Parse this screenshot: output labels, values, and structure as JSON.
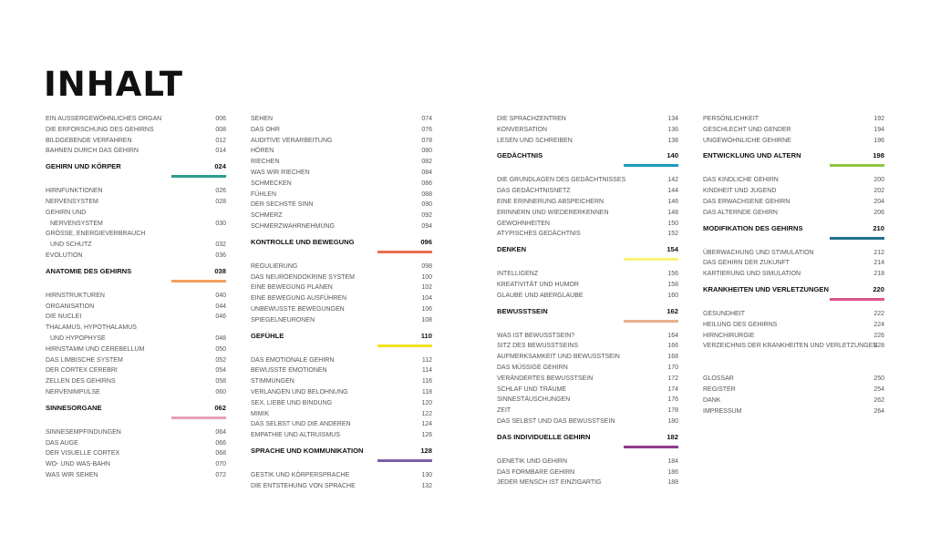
{
  "title": "INHALT",
  "columns": [
    [
      {
        "t": "item",
        "label": "EIN AUSSERGEWÖHNLICHES ORGAN",
        "page": "006"
      },
      {
        "t": "item",
        "label": "DIE ERFORSCHUNG DES GEHIRNS",
        "page": "008"
      },
      {
        "t": "item",
        "label": "BILDGEBENDE VERFAHREN",
        "page": "012"
      },
      {
        "t": "item",
        "label": "BAHNEN DURCH DAS GEHIRN",
        "page": "014"
      },
      {
        "t": "section",
        "label": "GEHIRN UND KÖRPER",
        "page": "024",
        "color": "#2a9d8f"
      },
      {
        "t": "item",
        "label": "HIRNFUNKTIONEN",
        "page": "026"
      },
      {
        "t": "item",
        "label": "NERVENSYSTEM",
        "page": "028"
      },
      {
        "t": "item",
        "label": "GEHIRN UND",
        "page": ""
      },
      {
        "t": "item",
        "label": "NERVENSYSTEM",
        "page": "030",
        "indent": true
      },
      {
        "t": "item",
        "label": "GRÖSSE, ENERGIEVERBRAUCH",
        "page": ""
      },
      {
        "t": "item",
        "label": "UND SCHUTZ",
        "page": "032",
        "indent": true
      },
      {
        "t": "item",
        "label": "EVOLUTION",
        "page": "036"
      },
      {
        "t": "section",
        "label": "ANATOMIE DES GEHIRNS",
        "page": "038",
        "color": "#f4a261"
      },
      {
        "t": "item",
        "label": "HIRNSTRUKTUREN",
        "page": "040"
      },
      {
        "t": "item",
        "label": "ORGANISATION",
        "page": "044"
      },
      {
        "t": "item",
        "label": "DIE NUCLEI",
        "page": "046"
      },
      {
        "t": "item",
        "label": "THALAMUS, HYPOTHALAMUS",
        "page": ""
      },
      {
        "t": "item",
        "label": "UND HYPOPHYSE",
        "page": "048",
        "indent": true
      },
      {
        "t": "item",
        "label": "HIRNSTAMM UND CEREBELLUM",
        "page": "050"
      },
      {
        "t": "item",
        "label": "DAS LIMBISCHE SYSTEM",
        "page": "052"
      },
      {
        "t": "item",
        "label": "DER CORTEX CEREBRI",
        "page": "054"
      },
      {
        "t": "item",
        "label": "ZELLEN DES GEHIRNS",
        "page": "058"
      },
      {
        "t": "item",
        "label": "NERVENIMPULSE",
        "page": "060"
      },
      {
        "t": "section",
        "label": "SINNESORGANE",
        "page": "062",
        "color": "#e8a0b4"
      },
      {
        "t": "item",
        "label": "SINNESEMPFINDUNGEN",
        "page": "064"
      },
      {
        "t": "item",
        "label": "DAS AUGE",
        "page": "066"
      },
      {
        "t": "item",
        "label": "DER VISUELLE CORTEX",
        "page": "068"
      },
      {
        "t": "item",
        "label": "WO- UND WAS-BAHN",
        "page": "070"
      },
      {
        "t": "item",
        "label": "WAS WIR SEHEN",
        "page": "072"
      }
    ],
    [
      {
        "t": "item",
        "label": "SEHEN",
        "page": "074"
      },
      {
        "t": "item",
        "label": "DAS OHR",
        "page": "076"
      },
      {
        "t": "item",
        "label": "AUDITIVE VERARBEITUNG",
        "page": "078"
      },
      {
        "t": "item",
        "label": "HÖREN",
        "page": "080"
      },
      {
        "t": "item",
        "label": "RIECHEN",
        "page": "082"
      },
      {
        "t": "item",
        "label": "WAS WIR RIECHEN",
        "page": "084"
      },
      {
        "t": "item",
        "label": "SCHMECKEN",
        "page": "086"
      },
      {
        "t": "item",
        "label": "FÜHLEN",
        "page": "088"
      },
      {
        "t": "item",
        "label": "DER SECHSTE SINN",
        "page": "090"
      },
      {
        "t": "item",
        "label": "SCHMERZ",
        "page": "092"
      },
      {
        "t": "item",
        "label": "SCHMERZWAHRNEHMUNG",
        "page": "094"
      },
      {
        "t": "section",
        "label": "KONTROLLE UND BEWEGUNG",
        "page": "096",
        "color": "#e76f51"
      },
      {
        "t": "item",
        "label": "REGULIERUNG",
        "page": "098"
      },
      {
        "t": "item",
        "label": "DAS NEUROENDOKRINE SYSTEM",
        "page": "100"
      },
      {
        "t": "item",
        "label": "EINE BEWEGUNG PLANEN",
        "page": "102"
      },
      {
        "t": "item",
        "label": "EINE BEWEGUNG AUSFÜHREN",
        "page": "104"
      },
      {
        "t": "item",
        "label": "UNBEWUSSTE BEWEGUNGEN",
        "page": "106"
      },
      {
        "t": "item",
        "label": "SPIEGELNEURONEN",
        "page": "108"
      },
      {
        "t": "section",
        "label": "GEFÜHLE",
        "page": "110",
        "color": "#f2e21b"
      },
      {
        "t": "item",
        "label": "DAS EMOTIONALE GEHIRN",
        "page": "112"
      },
      {
        "t": "item",
        "label": "BEWUSSTE EMOTIONEN",
        "page": "114"
      },
      {
        "t": "item",
        "label": "STIMMUNGEN",
        "page": "116"
      },
      {
        "t": "item",
        "label": "VERLANGEN UND BELOHNUNG",
        "page": "118"
      },
      {
        "t": "item",
        "label": "SEX, LIEBE UND BINDUNG",
        "page": "120"
      },
      {
        "t": "item",
        "label": "MIMIK",
        "page": "122"
      },
      {
        "t": "item",
        "label": "DAS SELBST UND DIE ANDEREN",
        "page": "124"
      },
      {
        "t": "item",
        "label": "EMPATHIE UND ALTRUISMUS",
        "page": "126"
      },
      {
        "t": "section",
        "label": "SPRACHE UND KOMMUNIKATION",
        "page": "128",
        "color": "#7b5ea7"
      },
      {
        "t": "item",
        "label": "GESTIK UND KÖRPERSPRACHE",
        "page": "130"
      },
      {
        "t": "item",
        "label": "DIE ENTSTEHUNG VON SPRACHE",
        "page": "132"
      }
    ],
    [
      {
        "t": "item",
        "label": "DIE SPRACHZENTREN",
        "page": "134"
      },
      {
        "t": "item",
        "label": "KONVERSATION",
        "page": "136"
      },
      {
        "t": "item",
        "label": "LESEN UND SCHREIBEN",
        "page": "138"
      },
      {
        "t": "section",
        "label": "GEDÄCHTNIS",
        "page": "140",
        "color": "#1d9bbf"
      },
      {
        "t": "item",
        "label": "DIE GRUNDLAGEN DES GEDÄCHTNISSES",
        "page": "142"
      },
      {
        "t": "item",
        "label": "DAS GEDÄCHTNISNETZ",
        "page": "144"
      },
      {
        "t": "item",
        "label": "EINE ERINNERUNG ABSPEICHERN",
        "page": "146"
      },
      {
        "t": "item",
        "label": "ERINNERN UND WIEDERERKENNEN",
        "page": "148"
      },
      {
        "t": "item",
        "label": "GEWOHNHEITEN",
        "page": "150"
      },
      {
        "t": "item",
        "label": "ATYPISCHES GEDÄCHTNIS",
        "page": "152"
      },
      {
        "t": "section",
        "label": "DENKEN",
        "page": "154",
        "color": "#f6f27a"
      },
      {
        "t": "item",
        "label": "INTELLIGENZ",
        "page": "156"
      },
      {
        "t": "item",
        "label": "KREATIVITÄT UND HUMOR",
        "page": "158"
      },
      {
        "t": "item",
        "label": "GLAUBE UND ABERGLAUBE",
        "page": "160"
      },
      {
        "t": "section",
        "label": "BEWUSSTSEIN",
        "page": "162",
        "color": "#e8b08c"
      },
      {
        "t": "item",
        "label": "WAS IST BEWUSSTSEIN?",
        "page": "164"
      },
      {
        "t": "item",
        "label": "SITZ DES BEWUSSTSEINS",
        "page": "166"
      },
      {
        "t": "item",
        "label": "AUFMERKSAMKEIT UND BEWUSSTSEIN",
        "page": "168"
      },
      {
        "t": "item",
        "label": "DAS MÜSSIGE GEHIRN",
        "page": "170"
      },
      {
        "t": "item",
        "label": "VERÄNDERTES BEWUSSTSEIN",
        "page": "172"
      },
      {
        "t": "item",
        "label": "SCHLAF UND TRÄUME",
        "page": "174"
      },
      {
        "t": "item",
        "label": "SINNESTÄUSCHUNGEN",
        "page": "176"
      },
      {
        "t": "item",
        "label": "ZEIT",
        "page": "178"
      },
      {
        "t": "item",
        "label": "DAS SELBST UND DAS BEWUSSTSEIN",
        "page": "180"
      },
      {
        "t": "section",
        "label": "DAS INDIVIDUELLE GEHIRN",
        "page": "182",
        "color": "#8e3b8a"
      },
      {
        "t": "item",
        "label": "GENETIK UND GEHIRN",
        "page": "184"
      },
      {
        "t": "item",
        "label": "DAS FORMBARE GEHIRN",
        "page": "186"
      },
      {
        "t": "item",
        "label": "JEDER MENSCH IST EINZIGARTIG",
        "page": "188"
      }
    ],
    [
      {
        "t": "item",
        "label": "PERSÖNLICHKEIT",
        "page": "192"
      },
      {
        "t": "item",
        "label": "GESCHLECHT UND GENDER",
        "page": "194"
      },
      {
        "t": "item",
        "label": "UNGEWÖHNLICHE GEHIRNE",
        "page": "196"
      },
      {
        "t": "section",
        "label": "ENTWICKLUNG UND ALTERN",
        "page": "198",
        "color": "#8cc63f"
      },
      {
        "t": "item",
        "label": "DAS KINDLICHE GEHIRN",
        "page": "200"
      },
      {
        "t": "item",
        "label": "KINDHEIT UND JUGEND",
        "page": "202"
      },
      {
        "t": "item",
        "label": "DAS ERWACHSENE GEHIRN",
        "page": "204"
      },
      {
        "t": "item",
        "label": "DAS ALTERNDE GEHIRN",
        "page": "206"
      },
      {
        "t": "section",
        "label": "MODIFIKATION DES GEHIRNS",
        "page": "210",
        "color": "#1f6f8b"
      },
      {
        "t": "item",
        "label": "ÜBERWACHUNG UND STIMULATION",
        "page": "212"
      },
      {
        "t": "item",
        "label": "DAS GEHIRN DER ZUKUNFT",
        "page": "214"
      },
      {
        "t": "item",
        "label": "KARTIERUNG UND SIMULATION",
        "page": "218"
      },
      {
        "t": "section",
        "label": "KRANKHEITEN UND VERLETZUNGEN",
        "page": "220",
        "color": "#d9558a"
      },
      {
        "t": "item",
        "label": "GESUNDHEIT",
        "page": "222"
      },
      {
        "t": "item",
        "label": "HEILUNG DES GEHIRNS",
        "page": "224"
      },
      {
        "t": "item",
        "label": "HIRNCHIRURGIE",
        "page": "226"
      },
      {
        "t": "item",
        "label": "VERZEICHNIS DER KRANKHEITEN UND VERLETZUNGEN",
        "page": "228"
      },
      {
        "t": "gap"
      },
      {
        "t": "gap"
      },
      {
        "t": "item",
        "label": "GLOSSAR",
        "page": "250"
      },
      {
        "t": "item",
        "label": "REGISTER",
        "page": "254"
      },
      {
        "t": "item",
        "label": "DANK",
        "page": "262"
      },
      {
        "t": "item",
        "label": "IMPRESSUM",
        "page": "264"
      }
    ]
  ]
}
